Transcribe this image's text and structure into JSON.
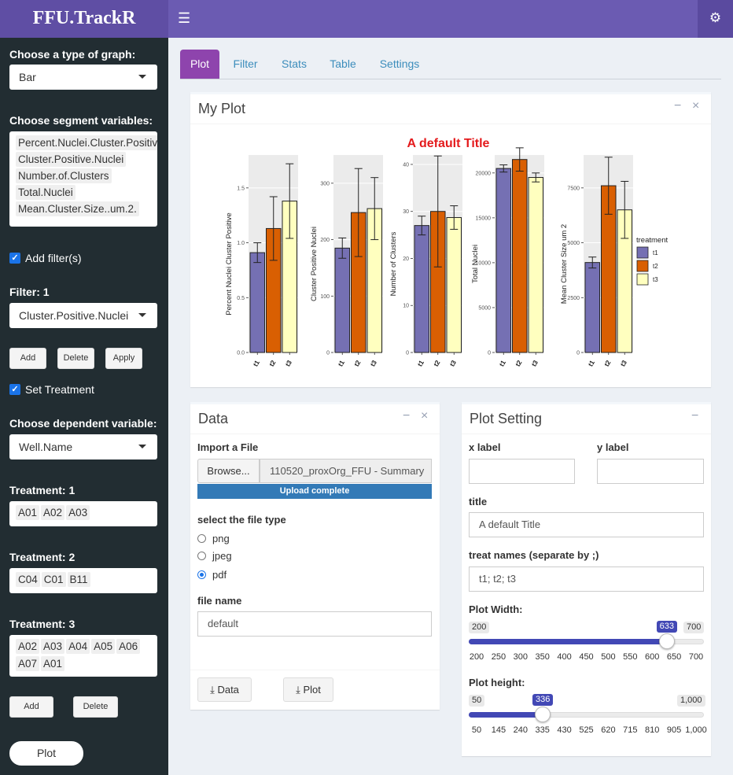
{
  "app": {
    "title": "FFU.TrackR",
    "menu_icon": "hamburger-icon",
    "settings_icon": "gears-icon"
  },
  "sidebar": {
    "graph_type": {
      "label": "Choose a type of graph:",
      "value": "Bar"
    },
    "segment": {
      "label": "Choose segment variables:",
      "items": [
        "Percent.Nuclei.Cluster.Positive",
        "Cluster.Positive.Nuclei",
        "Number.of.Clusters",
        "Total.Nuclei",
        "Mean.Cluster.Size..um.2."
      ]
    },
    "add_filter": {
      "label": "Add filter(s)",
      "checked": true
    },
    "filter1": {
      "label": "Filter: 1",
      "value": "Cluster.Positive.Nuclei"
    },
    "buttons": {
      "add": "Add",
      "delete": "Delete",
      "apply": "Apply"
    },
    "set_treatment": {
      "label": "Set Treatment",
      "checked": true
    },
    "dependent": {
      "label": "Choose dependent variable:",
      "value": "Well.Name"
    },
    "treatments": [
      {
        "label": "Treatment: 1",
        "items": [
          "A01",
          "A02",
          "A03"
        ]
      },
      {
        "label": "Treatment: 2",
        "items": [
          "C04",
          "C01",
          "B11"
        ]
      },
      {
        "label": "Treatment: 3",
        "items": [
          "A02",
          "A03",
          "A04",
          "A05",
          "A06",
          "A07",
          "A01"
        ]
      }
    ],
    "treat_buttons": {
      "add": "Add",
      "delete": "Delete"
    },
    "plot_button": "Plot"
  },
  "tabs": [
    {
      "label": "Plot",
      "active": true
    },
    {
      "label": "Filter"
    },
    {
      "label": "Stats"
    },
    {
      "label": "Table"
    },
    {
      "label": "Settings"
    }
  ],
  "myplot": {
    "title": "My Plot",
    "minimize": "−",
    "close": "×"
  },
  "chart_data": {
    "type": "bar",
    "title": "A default Title",
    "title_color": "#e41a1c",
    "categories": [
      "t1",
      "t2",
      "t3"
    ],
    "colors": [
      "#7570b3",
      "#d95f02",
      "#ffffbf"
    ],
    "legend": {
      "title": "treatment",
      "entries": [
        "t1",
        "t2",
        "t3"
      ],
      "position": "right"
    },
    "panels": [
      {
        "ylabel": "Percent Nuclei Cluster Positive",
        "ylim": [
          0,
          1.8
        ],
        "ticks": [
          0.0,
          0.5,
          1.0,
          1.5
        ],
        "tick_labels": [
          "0.0",
          "0.5",
          "1.0",
          "1.5"
        ],
        "values": [
          0.91,
          1.13,
          1.38
        ],
        "errors": [
          0.09,
          0.29,
          0.34
        ]
      },
      {
        "ylabel": "Cluster Positive Nuclei",
        "ylim": [
          0,
          350
        ],
        "ticks": [
          0,
          100,
          200,
          300
        ],
        "tick_labels": [
          "0",
          "100",
          "200",
          "300"
        ],
        "values": [
          185,
          248,
          255
        ],
        "errors": [
          18,
          78,
          55
        ]
      },
      {
        "ylabel": "Number of Clusters",
        "ylim": [
          0,
          42
        ],
        "ticks": [
          0,
          10,
          20,
          30,
          40
        ],
        "tick_labels": [
          "0",
          "10",
          "20",
          "30",
          "40"
        ],
        "values": [
          27,
          30,
          28.7
        ],
        "errors": [
          2,
          11.8,
          2.5
        ]
      },
      {
        "ylabel": "Total Nuclei",
        "ylim": [
          0,
          22000
        ],
        "ticks": [
          0,
          5000,
          10000,
          15000,
          20000
        ],
        "tick_labels": [
          "0",
          "5000",
          "10000",
          "15000",
          "20000"
        ],
        "values": [
          20500,
          21500,
          19500
        ],
        "errors": [
          400,
          1300,
          500
        ]
      },
      {
        "ylabel": "Mean Cluster Size  um 2",
        "ylim": [
          0,
          9000
        ],
        "ticks": [
          0,
          2500,
          5000,
          7500
        ],
        "tick_labels": [
          "0",
          "2500",
          "5000",
          "7500"
        ],
        "values": [
          4100,
          7600,
          6500
        ],
        "errors": [
          250,
          1300,
          1300
        ]
      }
    ]
  },
  "data_box": {
    "title": "Data",
    "minimize": "−",
    "close": "×",
    "import_label": "Import a File",
    "browse": "Browse...",
    "file": "110520_proxOrg_FFU - Summary",
    "progress": "Upload complete",
    "type_label": "select the file type",
    "types": [
      {
        "label": "png",
        "checked": false
      },
      {
        "label": "jpeg",
        "checked": false
      },
      {
        "label": "pdf",
        "checked": true
      }
    ],
    "filename_label": "file name",
    "filename": "default",
    "dl_data": "Data",
    "dl_plot": "Plot"
  },
  "settings_box": {
    "title": "Plot Setting",
    "minimize": "−",
    "xlabel": {
      "label": "x label",
      "value": ""
    },
    "ylabel": {
      "label": "y label",
      "value": ""
    },
    "title_field": {
      "label": "title",
      "value": "A default Title"
    },
    "treat_names": {
      "label": "treat names (separate by ;)",
      "value": "t1; t2; t3"
    },
    "width": {
      "label": "Plot Width:",
      "min": "200",
      "max": "700",
      "value": "633",
      "min_num": 200,
      "max_num": 700,
      "value_num": 633,
      "ticks": [
        "200",
        "250",
        "300",
        "350",
        "400",
        "450",
        "500",
        "550",
        "600",
        "650",
        "700"
      ]
    },
    "height": {
      "label": "Plot height:",
      "min": "50",
      "max": "1,000",
      "value": "336",
      "min_num": 50,
      "max_num": 1000,
      "value_num": 336,
      "ticks": [
        "50",
        "145",
        "240",
        "335",
        "430",
        "525",
        "620",
        "715",
        "810",
        "905",
        "1,000"
      ]
    }
  }
}
